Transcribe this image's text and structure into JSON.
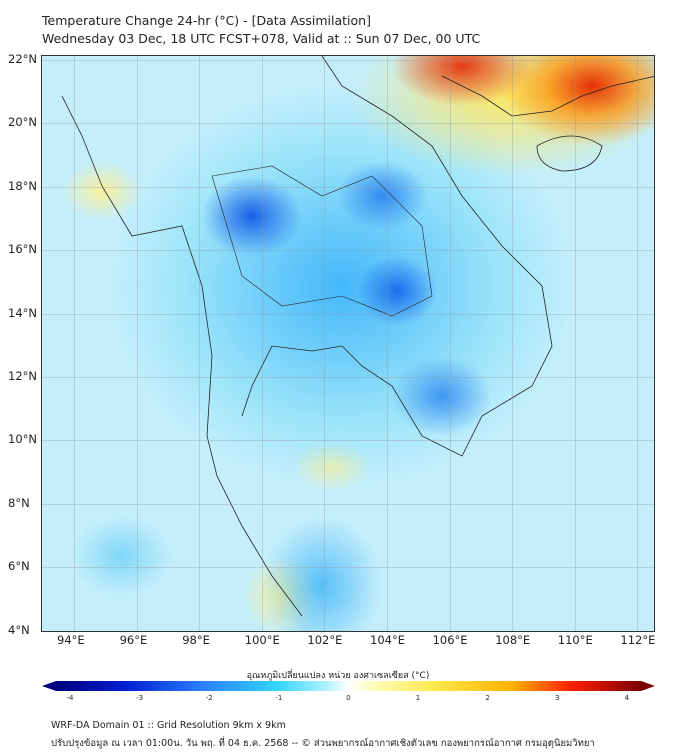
{
  "title": {
    "line1": "Temperature Change 24-hr (°C) - [Data Assimilation]",
    "line2": "Wednesday 03 Dec, 18 UTC FCST+078, Valid at :: Sun 07 Dec, 00 UTC"
  },
  "axes": {
    "lon_labels": [
      "94°E",
      "96°E",
      "98°E",
      "100°E",
      "102°E",
      "104°E",
      "106°E",
      "108°E",
      "110°E",
      "112°E"
    ],
    "lat_labels": [
      "22°N",
      "20°N",
      "18°N",
      "16°N",
      "14°N",
      "12°N",
      "10°N",
      "8°N",
      "6°N",
      "4°N"
    ]
  },
  "colorbar": {
    "label": "อุณหภูมิเปลี่ยนแปลง หน่วย องศาเซลเซียส (°C)",
    "ticks": [
      "-4",
      "-3",
      "-2",
      "-1",
      "0",
      "1",
      "2",
      "3",
      "4"
    ],
    "min": -4,
    "max": 4,
    "colors": {
      "low": "#000080",
      "mid": "#ffffff",
      "high": "#7a0000"
    }
  },
  "footer": {
    "line1": "WRF-DA Domain 01 :: Grid Resolution 9km x 9km",
    "line2": "ปรับปรุงข้อมูล ณ เวลา 01:00น. วัน พฤ. ที่ 04 ธ.ค. 2568 -- © ส่วนพยากรณ์อากาศเชิงตัวเลข กองพยากรณ์อากาศ กรมอุตุนิยมวิทยา"
  }
}
